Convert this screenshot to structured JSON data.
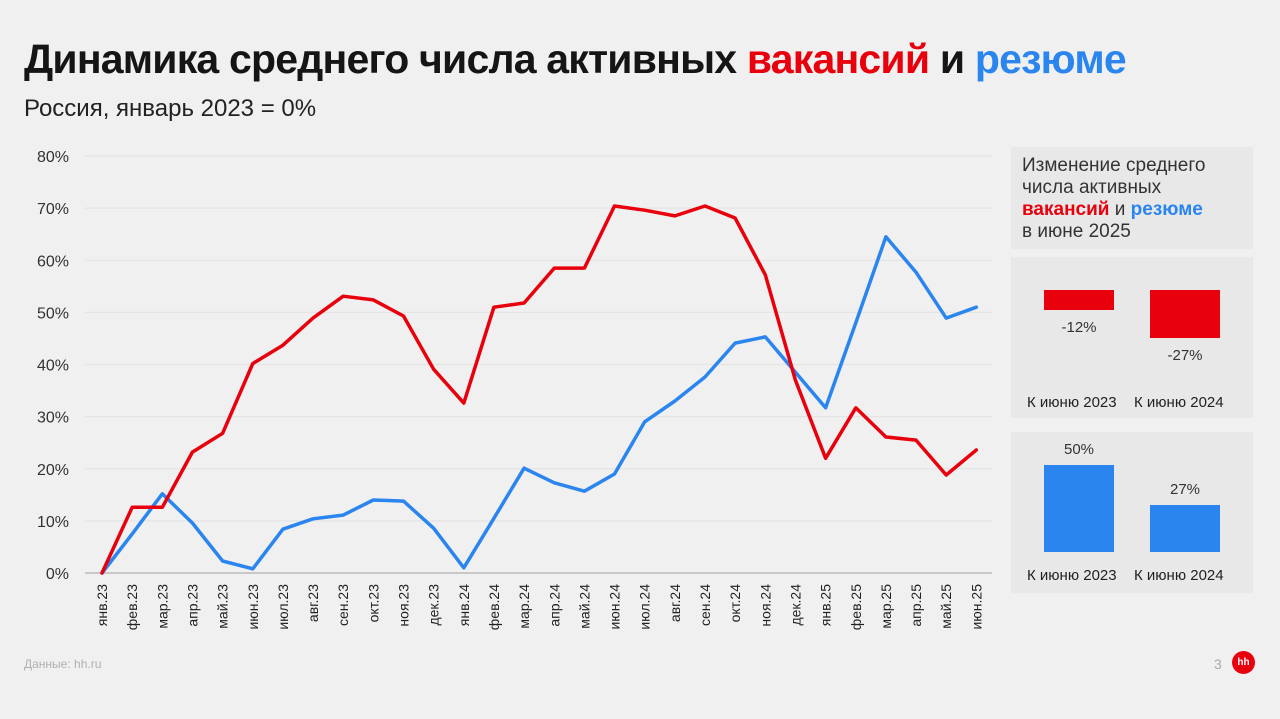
{
  "header": {
    "title_part1": "Динамика среднего числа активных ",
    "title_red": "вакансий",
    "title_mid": " и ",
    "title_blue": "резюме",
    "subtitle": "Россия, январь 2023 = 0%"
  },
  "colors": {
    "vacancies": "#e8000d",
    "resumes": "#2a85ee",
    "background": "#f0f0f0",
    "panel": "#e8e8e8",
    "grid": "#e2e2e2"
  },
  "side_panel": {
    "title_line1": "Изменение среднего",
    "title_line2": "числа активных",
    "title_red": "вакансий",
    "title_mid": " и ",
    "title_blue": "резюме",
    "title_line4": "в июне 2025",
    "vacancies_chart": {
      "bars": [
        {
          "label": "К июню 2023",
          "value_label": "-12%",
          "value": -12
        },
        {
          "label": "К июню 2024",
          "value_label": "-27%",
          "value": -27
        }
      ]
    },
    "resumes_chart": {
      "bars": [
        {
          "label": "К июню 2023",
          "value_label": "50%",
          "value": 50
        },
        {
          "label": "К июню 2024",
          "value_label": "27%",
          "value": 27
        }
      ]
    }
  },
  "footer": {
    "source": "Данные: hh.ru",
    "page_number": "3",
    "logo_text": "hh"
  },
  "chart_data": [
    {
      "type": "line",
      "title": "Динамика среднего числа активных вакансий и резюме",
      "subtitle": "Россия, январь 2023 = 0%",
      "xlabel": "",
      "ylabel": "",
      "ylim": [
        0,
        80
      ],
      "yticks": [
        "0%",
        "10%",
        "20%",
        "30%",
        "40%",
        "50%",
        "60%",
        "70%",
        "80%"
      ],
      "grid": true,
      "legend": "in title (colored words)",
      "categories": [
        "янв.23",
        "фев.23",
        "мар.23",
        "апр.23",
        "май.23",
        "июн.23",
        "июл.23",
        "авг.23",
        "сен.23",
        "окт.23",
        "ноя.23",
        "дек.23",
        "янв.24",
        "фев.24",
        "мар.24",
        "апр.24",
        "май.24",
        "июн.24",
        "июл.24",
        "авг.24",
        "сен.24",
        "окт.24",
        "ноя.24",
        "дек.24",
        "янв.25",
        "фев.25",
        "мар.25",
        "апр.25",
        "май.25",
        "июн.25"
      ],
      "series": [
        {
          "name": "вакансии",
          "color": "#e8000d",
          "values": [
            0,
            12.6,
            12.6,
            23.2,
            26.8,
            40.2,
            43.7,
            48.9,
            53.1,
            52.4,
            49.3,
            39.1,
            32.6,
            51.0,
            51.8,
            58.5,
            58.5,
            70.4,
            69.6,
            68.5,
            70.4,
            68.1,
            57.2,
            37.0,
            22.0,
            31.7,
            26.1,
            25.5,
            18.8,
            23.6
          ]
        },
        {
          "name": "резюме",
          "color": "#2a85ee",
          "values": [
            0,
            7.5,
            15.2,
            9.6,
            2.3,
            0.8,
            8.4,
            10.4,
            11.1,
            14.0,
            13.8,
            8.6,
            1.0,
            10.5,
            20.1,
            17.3,
            15.7,
            19.0,
            29.0,
            33.0,
            37.6,
            44.1,
            45.3,
            38.5,
            31.7,
            48.0,
            64.5,
            57.7,
            48.9,
            51.0
          ]
        }
      ]
    },
    {
      "type": "bar",
      "title": "Изменение среднего числа активных вакансий в июне 2025",
      "categories": [
        "К июню 2023",
        "К июню 2024"
      ],
      "values": [
        -12,
        -27
      ]
    },
    {
      "type": "bar",
      "title": "Изменение среднего числа активных резюме в июне 2025",
      "categories": [
        "К июню 2023",
        "К июню 2024"
      ],
      "values": [
        50,
        27
      ]
    }
  ]
}
